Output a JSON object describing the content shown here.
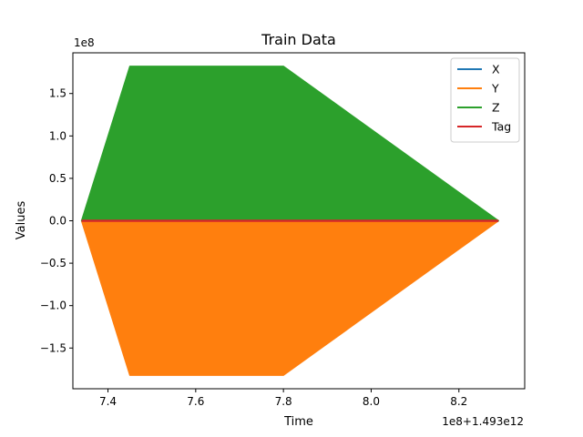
{
  "chart_data": {
    "type": "line",
    "title": "Train Data",
    "xlabel": "Time",
    "ylabel": "Values",
    "x_offset_label": "1e8+1.493e12",
    "y_offset_label": "1e8",
    "xlim": [
      7.32,
      8.35
    ],
    "ylim": [
      -1.98,
      1.98
    ],
    "x_ticks": [
      {
        "value": 7.4,
        "label": "7.4"
      },
      {
        "value": 7.6,
        "label": "7.6"
      },
      {
        "value": 7.8,
        "label": "7.8"
      },
      {
        "value": 8.0,
        "label": "8.0"
      },
      {
        "value": 8.2,
        "label": "8.2"
      }
    ],
    "y_ticks": [
      {
        "value": 1.5,
        "label": "1.5"
      },
      {
        "value": 1.0,
        "label": "1.0"
      },
      {
        "value": 0.5,
        "label": "0.5"
      },
      {
        "value": 0.0,
        "label": "0.0"
      },
      {
        "value": -0.5,
        "label": "−0.5"
      },
      {
        "value": -1.0,
        "label": "−1.0"
      },
      {
        "value": -1.5,
        "label": "−1.5"
      }
    ],
    "grid": false,
    "legend_position": "top-right",
    "series": [
      {
        "name": "X",
        "color": "#1f77b4",
        "x": [
          7.34,
          8.29
        ],
        "y": [
          0.0,
          0.0
        ]
      },
      {
        "name": "Y",
        "color": "#ff7f0e",
        "x": [
          7.34,
          7.45,
          7.8,
          8.29
        ],
        "y": [
          0.0,
          -1.82,
          -1.82,
          0.0
        ]
      },
      {
        "name": "Z",
        "color": "#2ca02c",
        "x": [
          7.34,
          7.45,
          7.8,
          8.29
        ],
        "y": [
          0.0,
          1.82,
          1.82,
          0.0
        ]
      },
      {
        "name": "Tag",
        "color": "#d62728",
        "x": [
          7.34,
          8.29
        ],
        "y": [
          0.0,
          0.0
        ]
      }
    ]
  }
}
